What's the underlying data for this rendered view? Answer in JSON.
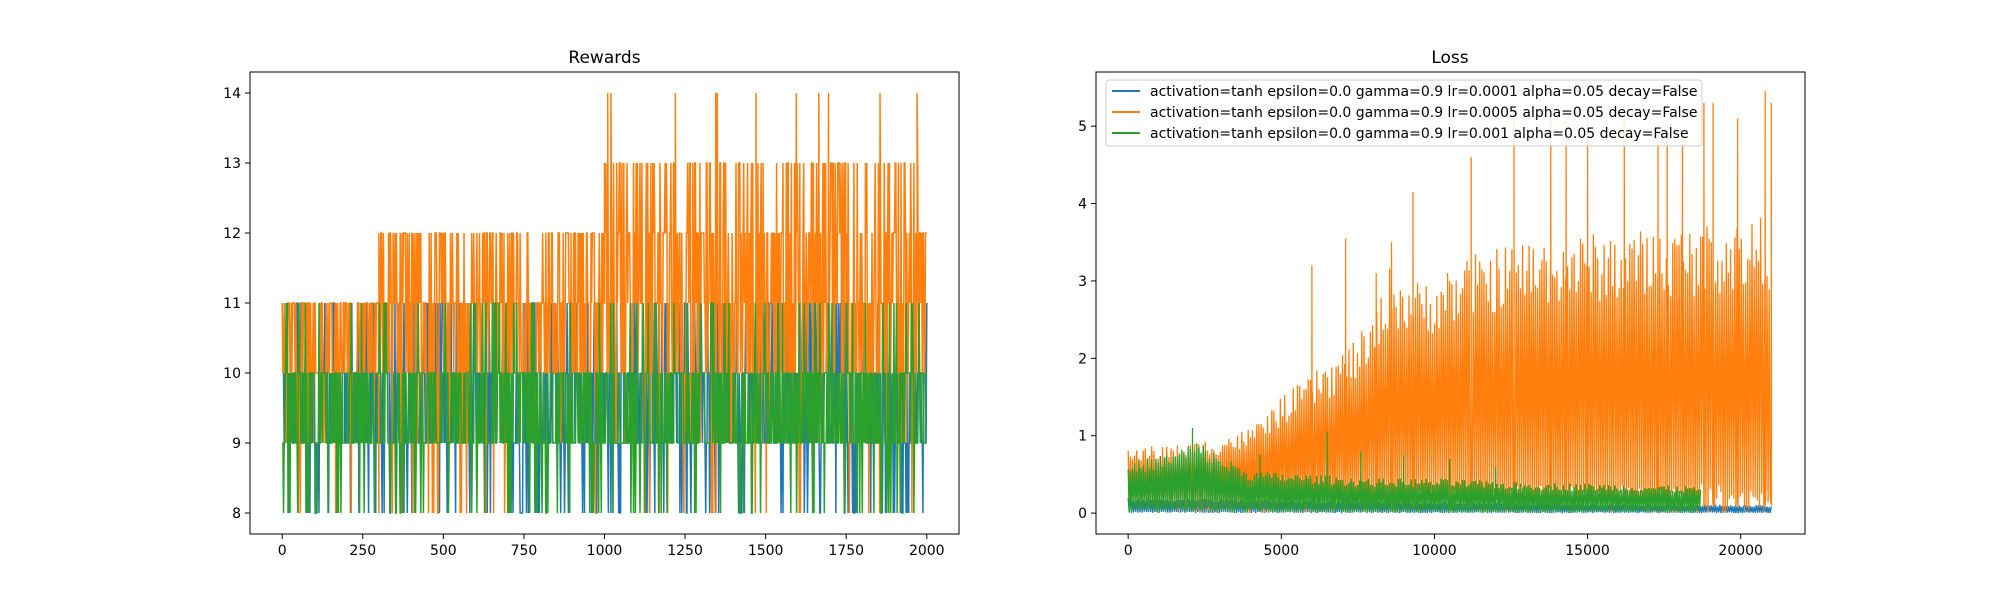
{
  "colors": {
    "series": [
      "#1f77b4",
      "#ff7f0e",
      "#2ca02c"
    ],
    "frame": "#000000",
    "legend_border": "#cccccc"
  },
  "chart_data": [
    {
      "type": "line",
      "title": "Rewards",
      "xlabel": "",
      "ylabel": "",
      "xlim": [
        -100,
        2100
      ],
      "ylim": [
        7.7,
        14.3
      ],
      "xticks": [
        0,
        250,
        500,
        750,
        1000,
        1250,
        1500,
        1750,
        2000
      ],
      "xtick_labels": [
        "0",
        "250",
        "500",
        "750",
        "1000",
        "1250",
        "1500",
        "1750",
        "2000"
      ],
      "yticks": [
        8,
        9,
        10,
        11,
        12,
        13,
        14
      ],
      "ytick_labels": [
        "8",
        "9",
        "10",
        "11",
        "12",
        "13",
        "14"
      ],
      "grid": false,
      "x_extent": [
        0,
        2000
      ],
      "series": [
        {
          "segments": [
            [
              0,
              1000,
              8,
              11
            ],
            [
              1000,
              2000,
              8,
              11
            ]
          ],
          "spikes": [],
          "note_values": "integer rewards oscillating per episode"
        },
        {
          "segments": [
            [
              0,
              300,
              10,
              11
            ],
            [
              300,
              1000,
              10,
              12
            ],
            [
              1000,
              2000,
              10,
              13
            ]
          ],
          "spikes": [
            [
              1010,
              14
            ],
            [
              1020,
              14
            ],
            [
              1220,
              14
            ],
            [
              1345,
              14
            ],
            [
              1350,
              14
            ],
            [
              1470,
              14
            ],
            [
              1595,
              14
            ],
            [
              1665,
              14
            ],
            [
              1695,
              14
            ],
            [
              1855,
              14
            ],
            [
              1970,
              14
            ]
          ]
        },
        {
          "segments": [
            [
              0,
              2000,
              9,
              10
            ]
          ],
          "spikes": []
        }
      ]
    },
    {
      "type": "line",
      "title": "Loss",
      "xlabel": "",
      "ylabel": "",
      "xlim": [
        -1050,
        22100
      ],
      "ylim": [
        -0.27,
        5.7
      ],
      "xticks": [
        0,
        5000,
        10000,
        15000,
        20000
      ],
      "xtick_labels": [
        "0",
        "5000",
        "10000",
        "15000",
        "20000"
      ],
      "yticks": [
        0,
        1,
        2,
        3,
        4,
        5
      ],
      "ytick_labels": [
        "0",
        "1",
        "2",
        "3",
        "4",
        "5"
      ],
      "grid": false,
      "legend_position": "upper-left",
      "series": [
        {
          "name": "activation=tanh epsilon=0.0 gamma=0.9 lr=0.0001 alpha=0.05 decay=False",
          "envelope": [
            [
              0,
              0.0,
              0.2
            ],
            [
              21000,
              0.0,
              0.1
            ]
          ]
        },
        {
          "name": "activation=tanh epsilon=0.0 gamma=0.9 lr=0.0005 alpha=0.05 decay=False",
          "envelope": [
            [
              0,
              0.1,
              0.85
            ],
            [
              2000,
              0.0,
              0.9
            ],
            [
              4000,
              0.0,
              1.1
            ],
            [
              5000,
              0.0,
              1.5
            ],
            [
              6000,
              0.0,
              1.8
            ],
            [
              7000,
              0.0,
              2.1
            ],
            [
              8000,
              0.0,
              2.5
            ],
            [
              8500,
              0.0,
              3.2
            ],
            [
              9500,
              0.0,
              3.0
            ],
            [
              10000,
              0.0,
              3.1
            ],
            [
              11000,
              0.0,
              3.3
            ],
            [
              12000,
              0.0,
              3.45
            ],
            [
              13000,
              0.0,
              3.55
            ],
            [
              14000,
              0.0,
              3.6
            ],
            [
              15000,
              0.0,
              3.62
            ],
            [
              17000,
              0.0,
              3.68
            ],
            [
              19000,
              0.0,
              3.75
            ],
            [
              21000,
              0.0,
              3.85
            ]
          ],
          "spikes": [
            [
              6000,
              3.2
            ],
            [
              7100,
              3.55
            ],
            [
              8100,
              3.1
            ],
            [
              8600,
              3.5
            ],
            [
              9300,
              4.15
            ],
            [
              11200,
              4.6
            ],
            [
              12600,
              5.1
            ],
            [
              13800,
              5.2
            ],
            [
              14300,
              5.1
            ],
            [
              15000,
              5.2
            ],
            [
              16200,
              5.1
            ],
            [
              17300,
              4.9
            ],
            [
              17600,
              5.0
            ],
            [
              18100,
              4.9
            ],
            [
              18800,
              5.3
            ],
            [
              19100,
              5.3
            ],
            [
              19900,
              5.1
            ],
            [
              20800,
              5.45
            ],
            [
              21000,
              5.3
            ]
          ]
        },
        {
          "name": "activation=tanh epsilon=0.0 gamma=0.9 lr=0.001 alpha=0.05 decay=False",
          "envelope": [
            [
              0,
              0.0,
              0.65
            ],
            [
              1500,
              0.0,
              0.8
            ],
            [
              2200,
              0.0,
              0.95
            ],
            [
              3000,
              0.0,
              0.75
            ],
            [
              4000,
              0.0,
              0.55
            ],
            [
              6000,
              0.0,
              0.5
            ],
            [
              8000,
              0.0,
              0.45
            ],
            [
              10000,
              0.0,
              0.45
            ],
            [
              13000,
              0.0,
              0.4
            ],
            [
              16000,
              0.0,
              0.38
            ],
            [
              18700,
              0.0,
              0.35
            ]
          ],
          "spikes": [
            [
              2100,
              1.1
            ],
            [
              4300,
              0.75
            ],
            [
              6500,
              1.05
            ],
            [
              7600,
              0.8
            ],
            [
              9000,
              0.75
            ],
            [
              10500,
              0.7
            ],
            [
              12000,
              0.6
            ]
          ]
        }
      ]
    }
  ]
}
